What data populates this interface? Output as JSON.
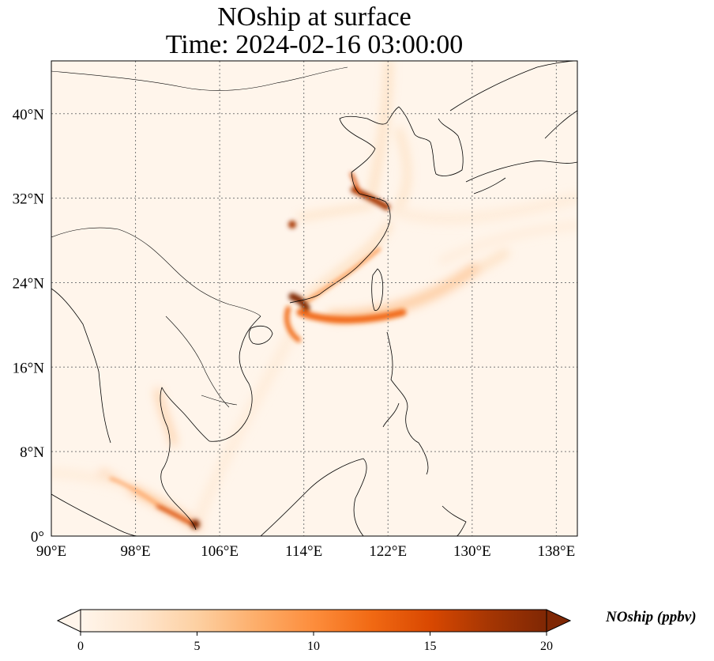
{
  "title": {
    "line1": "NOship at surface",
    "line2": "Time: 2024-02-16 03:00:00"
  },
  "map": {
    "lon_range": [
      90,
      140
    ],
    "lat_range": [
      0,
      45
    ],
    "lon_ticks": [
      {
        "value": 90,
        "label": "90°E"
      },
      {
        "value": 98,
        "label": "98°E"
      },
      {
        "value": 106,
        "label": "106°E"
      },
      {
        "value": 114,
        "label": "114°E"
      },
      {
        "value": 122,
        "label": "122°E"
      },
      {
        "value": 130,
        "label": "130°E"
      },
      {
        "value": 138,
        "label": "138°E"
      }
    ],
    "lat_ticks": [
      {
        "value": 0,
        "label": "0°"
      },
      {
        "value": 8,
        "label": "8°N"
      },
      {
        "value": 16,
        "label": "16°N"
      },
      {
        "value": 24,
        "label": "24°N"
      },
      {
        "value": 32,
        "label": "32°N"
      },
      {
        "value": 40,
        "label": "40°N"
      }
    ],
    "gridlines": true,
    "background_color": "#fff5eb"
  },
  "colorbar": {
    "label": "NOship (ppbv)",
    "min": 0,
    "max": 20,
    "ticks": [
      {
        "value": 0,
        "label": "0"
      },
      {
        "value": 5,
        "label": "5"
      },
      {
        "value": 10,
        "label": "10"
      },
      {
        "value": 15,
        "label": "15"
      },
      {
        "value": 20,
        "label": "20"
      }
    ],
    "colormap": [
      "#fff5eb",
      "#fee6ce",
      "#fdd0a2",
      "#fdae6b",
      "#fd8d3c",
      "#f16913",
      "#d94801",
      "#a63603",
      "#7f2704"
    ],
    "extend": "both"
  }
}
